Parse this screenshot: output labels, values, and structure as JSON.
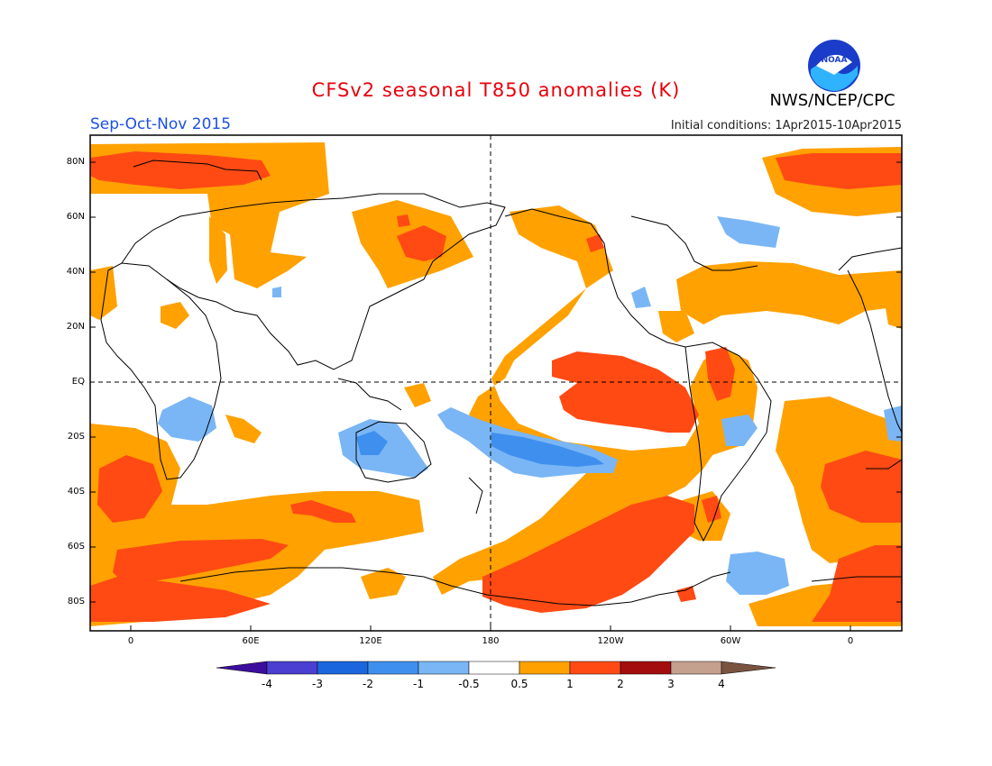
{
  "title": "CFSv2 seasonal T850 anomalies (K)",
  "season": "Sep-Oct-Nov 2015",
  "initial_conditions": "Initial conditions: 1Apr2015-10Apr2015",
  "agency": "NWS/NCEP/CPC",
  "logo_text": "NOAA",
  "lat_labels": [
    "80N",
    "60N",
    "40N",
    "20N",
    "EQ",
    "20S",
    "40S",
    "60S",
    "80S"
  ],
  "lon_labels": [
    "0",
    "60E",
    "120E",
    "180",
    "120W",
    "60W",
    "0"
  ],
  "colorbar": {
    "labels": [
      "-4",
      "-3",
      "-2",
      "-1",
      "-0.5",
      "0.5",
      "1",
      "2",
      "3",
      "4"
    ],
    "colors": [
      "#3d0d9e",
      "#4a3fd0",
      "#1b66dd",
      "#3f8fee",
      "#7ab6f5",
      "#ffffff",
      "#ffa100",
      "#ff4a14",
      "#a30d0d",
      "#c4a08e",
      "#7a5340"
    ]
  },
  "colors": {
    "warm1": "#ffa100",
    "warm2": "#ff4a14",
    "cool1": "#7ab6f5",
    "cool2": "#3f8fee"
  }
}
